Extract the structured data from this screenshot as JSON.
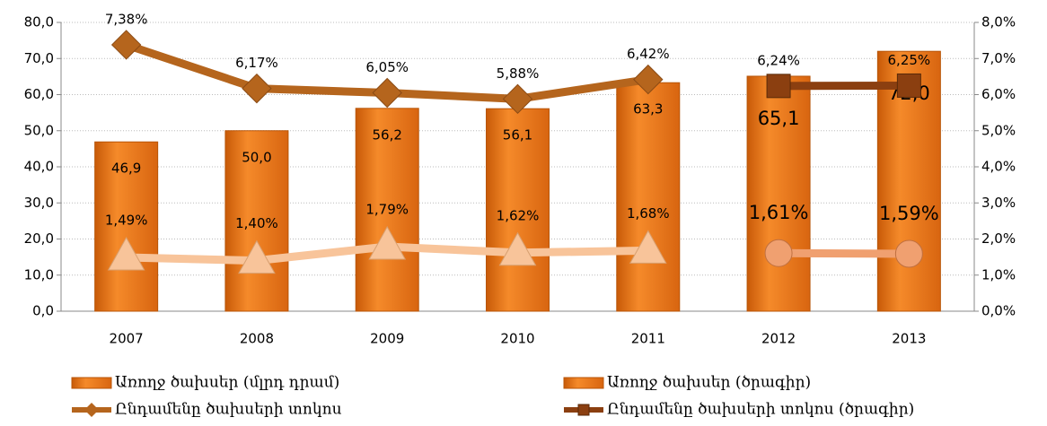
{
  "chart_data": {
    "type": "bar",
    "categories": [
      "2007",
      "2008",
      "2009",
      "2010",
      "2011",
      "2012",
      "2013"
    ],
    "ylim": [
      0,
      80
    ],
    "yticks": [
      {
        "value": 0,
        "label": "0,0"
      },
      {
        "value": 10,
        "label": "10,0"
      },
      {
        "value": 20,
        "label": "20,0"
      },
      {
        "value": 30,
        "label": "30,0"
      },
      {
        "value": 40,
        "label": "40,0"
      },
      {
        "value": 50,
        "label": "50,0"
      },
      {
        "value": 60,
        "label": "60,0"
      },
      {
        "value": 70,
        "label": "70,0"
      },
      {
        "value": 80,
        "label": "80,0"
      }
    ],
    "y2lim": [
      0,
      8
    ],
    "y2ticks": [
      {
        "value": 0,
        "label": "0,0%"
      },
      {
        "value": 1,
        "label": "1,0%"
      },
      {
        "value": 2,
        "label": "2,0%"
      },
      {
        "value": 3,
        "label": "3,0%"
      },
      {
        "value": 4,
        "label": "4,0%"
      },
      {
        "value": 5,
        "label": "5,0%"
      },
      {
        "value": 6,
        "label": "6,0%"
      },
      {
        "value": 7,
        "label": "7,0%"
      },
      {
        "value": 8,
        "label": "8,0%"
      }
    ],
    "grid": true,
    "legend": "bottom",
    "series": [
      {
        "name": "Առողջ ծախսեր (մլրդ դրամ)",
        "type": "bar",
        "color": "#ED7D1A",
        "values": [
          46.9,
          50.0,
          56.2,
          56.1,
          63.3,
          null,
          null
        ],
        "value_labels": [
          "46,9",
          "50,0",
          "56,2",
          "56,1",
          "63,3",
          null,
          null
        ]
      },
      {
        "name": "Առողջ ծախսեր (ծրագիր)",
        "type": "bar",
        "color": "#ED7D1A",
        "values": [
          null,
          null,
          null,
          null,
          null,
          65.1,
          72.0
        ],
        "value_labels": [
          null,
          null,
          null,
          null,
          null,
          "65,1",
          "72,0"
        ]
      },
      {
        "name": "Ընդամենը ծախսերի տոկոս",
        "type": "line",
        "axis": "y2",
        "color": "#B5651D",
        "marker": "diamond",
        "values": [
          7.38,
          6.17,
          6.05,
          5.88,
          6.42,
          null,
          null
        ],
        "value_labels": [
          "7,38%",
          "6,17%",
          "6,05%",
          "5,88%",
          "6,42%",
          null,
          null
        ]
      },
      {
        "name": "Ընդամենը ծախսերի տոկոս (ծրագիր)",
        "type": "line",
        "axis": "y2",
        "color": "#8B3F10",
        "marker": "square",
        "values": [
          null,
          null,
          null,
          null,
          null,
          6.24,
          6.25
        ],
        "value_labels": [
          null,
          null,
          null,
          null,
          null,
          "6,24%",
          "6,25%"
        ]
      },
      {
        "type": "line",
        "axis": "y2",
        "color": "#F8C49A",
        "marker": "triangle",
        "values": [
          1.49,
          1.4,
          1.79,
          1.62,
          1.68,
          null,
          null
        ],
        "value_labels": [
          "1,49%",
          "1,40%",
          "1,79%",
          "1,62%",
          "1,68%",
          null,
          null
        ]
      },
      {
        "type": "line",
        "axis": "y2",
        "color": "#F0A070",
        "marker": "circle",
        "values": [
          null,
          null,
          null,
          null,
          null,
          1.61,
          1.59
        ],
        "value_labels": [
          null,
          null,
          null,
          null,
          null,
          "1,61%",
          "1,59%"
        ]
      }
    ]
  }
}
